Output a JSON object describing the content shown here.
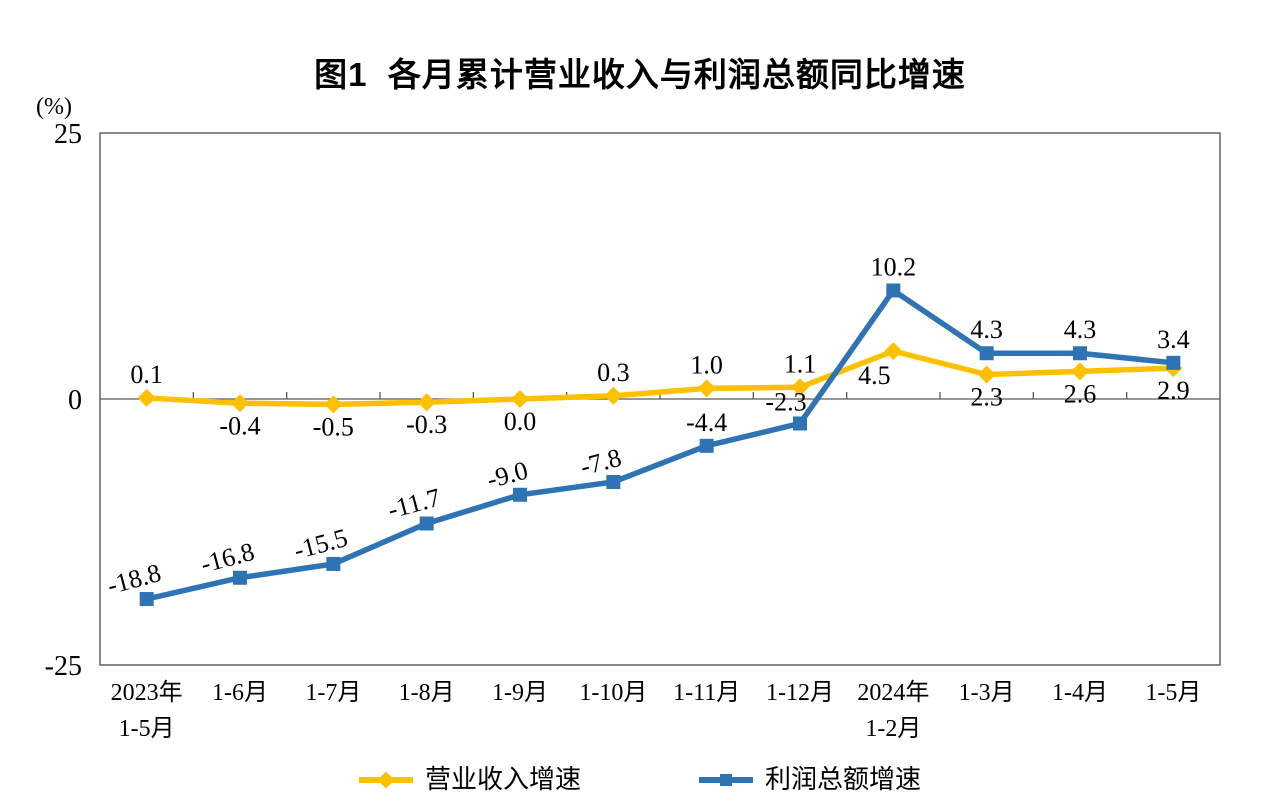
{
  "chart_data": {
    "type": "line",
    "title": "图1  各月累计营业收入与利润总额同比增速",
    "unit_label": "(%)",
    "categories": [
      "2023年\n1-5月",
      "1-6月",
      "1-7月",
      "1-8月",
      "1-9月",
      "1-10月",
      "1-11月",
      "1-12月",
      "2024年\n1-2月",
      "1-3月",
      "1-4月",
      "1-5月"
    ],
    "ylim": [
      -25,
      25
    ],
    "yticks": [
      25,
      0,
      -25
    ],
    "grid": false,
    "legend_position": "bottom",
    "axis_color": "#595959",
    "series": [
      {
        "name": "营业收入增速",
        "color": "#FFC000",
        "marker": "diamond",
        "values": [
          0.1,
          -0.4,
          -0.5,
          -0.3,
          0.0,
          0.3,
          1.0,
          1.1,
          4.5,
          2.3,
          2.6,
          2.9
        ],
        "label_sides": [
          "above",
          "below",
          "below",
          "below",
          "below",
          "above",
          "above",
          "above",
          "below-left",
          "below",
          "below",
          "below"
        ]
      },
      {
        "name": "利润总额增速",
        "color": "#2E74B5",
        "marker": "square",
        "values": [
          -18.8,
          -16.8,
          -15.5,
          -11.7,
          -9.0,
          -7.8,
          -4.4,
          -2.3,
          10.2,
          4.3,
          4.3,
          3.4
        ],
        "label_sides": [
          "above-tilt",
          "above-tilt",
          "above-tilt",
          "above-tilt",
          "above-tilt",
          "above-tilt",
          "above",
          "above-left",
          "above",
          "above",
          "above",
          "above"
        ]
      }
    ]
  }
}
